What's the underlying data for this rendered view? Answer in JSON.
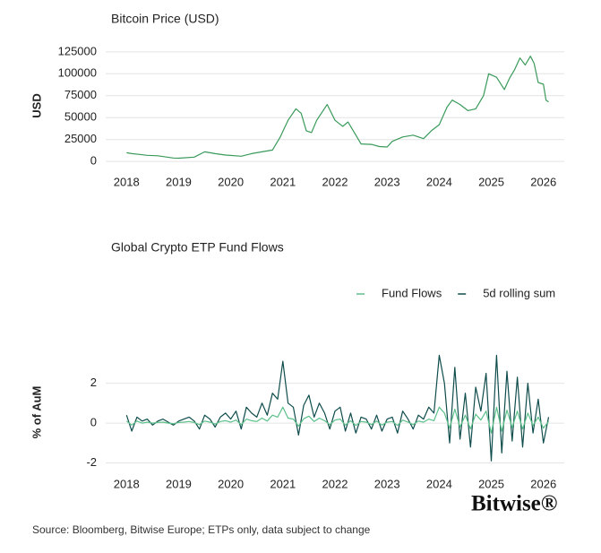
{
  "chart_data": [
    {
      "type": "line",
      "title": "Bitcoin Price (USD)",
      "ylabel": "USD",
      "x": [
        2018.0,
        2018.1,
        2018.25,
        2018.4,
        2018.6,
        2018.9,
        2019.0,
        2019.3,
        2019.5,
        2019.7,
        2019.9,
        2020.2,
        2020.4,
        2020.6,
        2020.8,
        2020.95,
        2021.1,
        2021.25,
        2021.35,
        2021.45,
        2021.55,
        2021.65,
        2021.85,
        2022.0,
        2022.15,
        2022.25,
        2022.4,
        2022.5,
        2022.7,
        2022.85,
        2023.0,
        2023.1,
        2023.3,
        2023.5,
        2023.7,
        2023.85,
        2024.0,
        2024.15,
        2024.25,
        2024.4,
        2024.55,
        2024.7,
        2024.85,
        2024.95,
        2025.1,
        2025.25,
        2025.35,
        2025.45,
        2025.55,
        2025.65,
        2025.75,
        2025.82,
        2025.9,
        2026.0,
        2026.05,
        2026.1
      ],
      "series": [
        {
          "name": "Bitcoin Price",
          "color": "#3a9a5b",
          "values": [
            10000,
            9000,
            8000,
            7000,
            6500,
            4000,
            3700,
            5000,
            11000,
            9000,
            7300,
            6000,
            9000,
            11000,
            13000,
            28000,
            47000,
            60000,
            55000,
            35000,
            33000,
            47000,
            65000,
            47000,
            40000,
            45000,
            30000,
            20000,
            19500,
            17000,
            16500,
            23000,
            28000,
            30000,
            26000,
            35000,
            42000,
            62000,
            70000,
            65000,
            58000,
            60000,
            75000,
            100000,
            96000,
            82000,
            95000,
            105000,
            118000,
            110000,
            120000,
            112000,
            90000,
            88000,
            70000,
            68000
          ]
        }
      ],
      "xlim": [
        2017.6,
        2026.4
      ],
      "xticks": [
        2018,
        2019,
        2020,
        2021,
        2022,
        2023,
        2024,
        2025,
        2026
      ],
      "ylim": [
        -8000,
        133000
      ],
      "yticks": [
        0,
        25000,
        50000,
        75000,
        100000,
        125000
      ],
      "grid": true
    },
    {
      "type": "line",
      "title": "Global Crypto ETP Fund Flows",
      "ylabel": "% of AuM",
      "legend": "upper right",
      "x": [
        2018.0,
        2018.1,
        2018.2,
        2018.3,
        2018.4,
        2018.5,
        2018.6,
        2018.7,
        2018.8,
        2018.9,
        2019.0,
        2019.1,
        2019.2,
        2019.3,
        2019.4,
        2019.5,
        2019.6,
        2019.7,
        2019.8,
        2019.9,
        2020.0,
        2020.1,
        2020.2,
        2020.3,
        2020.4,
        2020.5,
        2020.6,
        2020.7,
        2020.8,
        2020.9,
        2021.0,
        2021.1,
        2021.2,
        2021.3,
        2021.4,
        2021.5,
        2021.6,
        2021.7,
        2021.8,
        2021.9,
        2022.0,
        2022.1,
        2022.2,
        2022.3,
        2022.4,
        2022.5,
        2022.6,
        2022.7,
        2022.8,
        2022.9,
        2023.0,
        2023.1,
        2023.2,
        2023.3,
        2023.4,
        2023.5,
        2023.6,
        2023.7,
        2023.8,
        2023.9,
        2024.0,
        2024.1,
        2024.2,
        2024.3,
        2024.4,
        2024.5,
        2024.6,
        2024.7,
        2024.8,
        2024.9,
        2025.0,
        2025.1,
        2025.2,
        2025.3,
        2025.4,
        2025.5,
        2025.6,
        2025.7,
        2025.8,
        2025.9,
        2026.0,
        2026.1
      ],
      "series": [
        {
          "name": "5d rolling sum",
          "color": "#0f4c4c",
          "values": [
            0.4,
            -0.4,
            0.3,
            0.1,
            0.2,
            -0.1,
            0.1,
            0.2,
            0.05,
            -0.1,
            0.1,
            0.2,
            0.3,
            0.1,
            -0.3,
            0.4,
            0.2,
            -0.2,
            0.3,
            0.5,
            0.2,
            0.6,
            -0.3,
            0.8,
            0.5,
            0.3,
            1.0,
            0.4,
            1.5,
            1.2,
            3.1,
            1.0,
            0.8,
            -0.6,
            0.9,
            1.4,
            0.3,
            1.0,
            0.5,
            -0.3,
            0.6,
            0.8,
            -0.4,
            0.5,
            -0.5,
            0.3,
            0.2,
            -0.3,
            0.4,
            -0.4,
            0.2,
            0.3,
            -0.5,
            0.6,
            0.2,
            -0.3,
            0.4,
            0.2,
            0.8,
            0.5,
            3.4,
            2.0,
            -1.0,
            2.8,
            -0.8,
            1.5,
            -1.2,
            1.8,
            0.6,
            2.5,
            -1.9,
            3.4,
            -1.5,
            2.6,
            -0.9,
            2.3,
            -1.2,
            2.0,
            -0.5,
            1.2,
            -1.0,
            0.3
          ]
        },
        {
          "name": "Fund Flows",
          "color": "#5cc08a",
          "values": [
            0.1,
            -0.1,
            0.1,
            0.0,
            0.05,
            0.0,
            0.03,
            0.05,
            0.0,
            -0.03,
            0.03,
            0.05,
            0.08,
            0.03,
            -0.08,
            0.1,
            0.05,
            -0.05,
            0.08,
            0.12,
            0.05,
            0.15,
            -0.08,
            0.2,
            0.12,
            0.08,
            0.25,
            0.1,
            0.4,
            0.3,
            0.8,
            0.25,
            0.2,
            -0.15,
            0.22,
            0.35,
            0.08,
            0.25,
            0.12,
            -0.08,
            0.15,
            0.2,
            -0.1,
            0.12,
            -0.12,
            0.08,
            0.05,
            -0.08,
            0.1,
            -0.1,
            0.05,
            0.08,
            -0.12,
            0.15,
            0.05,
            -0.08,
            0.1,
            0.05,
            0.2,
            0.12,
            0.8,
            0.5,
            -0.25,
            0.7,
            -0.2,
            0.4,
            -0.3,
            0.45,
            0.15,
            0.6,
            -0.5,
            0.8,
            -0.4,
            0.65,
            -0.22,
            0.6,
            -0.3,
            0.5,
            -0.12,
            0.3,
            -0.25,
            0.08
          ]
        }
      ],
      "xlim": [
        2017.6,
        2026.4
      ],
      "xticks": [
        2018,
        2019,
        2020,
        2021,
        2022,
        2023,
        2024,
        2025,
        2026
      ],
      "ylim": [
        -2.2,
        3.6
      ],
      "yticks": [
        -2,
        0,
        2
      ],
      "grid": true
    }
  ],
  "logo": "Bitwise®",
  "source": "Source: Bloomberg, Bitwise Europe; ETPs only, data subject to change"
}
